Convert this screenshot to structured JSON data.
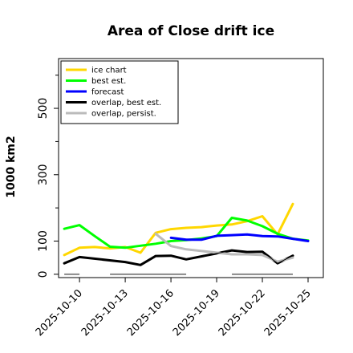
{
  "chart_data": {
    "type": "line",
    "title": "Area of Close drift ice",
    "ylabel": "1000 km2",
    "xlabel": "",
    "ylim": [
      -10,
      650
    ],
    "xlim": [
      "2025-10-08T15:00",
      "2025-10-26T00:00"
    ],
    "yticks": [
      0,
      100,
      300,
      500
    ],
    "xticks": [
      "2025-10-10",
      "2025-10-13",
      "2025-10-16",
      "2025-10-19",
      "2025-10-22",
      "2025-10-25"
    ],
    "highlight_xtick": "2025-10-16",
    "highlight_color": "#228B22",
    "grid": false,
    "legend_position": "top-left",
    "series": [
      {
        "name": "ice chart",
        "color": "#FFD700",
        "x": [
          "2025-10-09",
          "2025-10-10",
          "2025-10-11",
          "2025-10-12",
          "2025-10-13",
          "2025-10-14",
          "2025-10-15",
          "2025-10-16",
          "2025-10-17",
          "2025-10-18",
          "2025-10-19",
          "2025-10-20",
          "2025-10-21",
          "2025-10-22",
          "2025-10-23",
          "2025-10-24"
        ],
        "values": [
          58,
          80,
          82,
          78,
          82,
          65,
          125,
          136,
          140,
          142,
          147,
          150,
          160,
          175,
          120,
          212
        ]
      },
      {
        "name": "best est.",
        "color": "#00FF00",
        "x": [
          "2025-10-09",
          "2025-10-10",
          "2025-10-11",
          "2025-10-12",
          "2025-10-13",
          "2025-10-14",
          "2025-10-15",
          "2025-10-16",
          "2025-10-17",
          "2025-10-18",
          "2025-10-19",
          "2025-10-20",
          "2025-10-21",
          "2025-10-22",
          "2025-10-23",
          "2025-10-24",
          "2025-10-25"
        ],
        "values": [
          137,
          148,
          115,
          83,
          80,
          86,
          92,
          100,
          103,
          108,
          115,
          170,
          162,
          145,
          122,
          107,
          102
        ]
      },
      {
        "name": "forecast",
        "color": "#0000FF",
        "x": [
          "2025-10-16",
          "2025-10-17",
          "2025-10-18",
          "2025-10-19",
          "2025-10-20",
          "2025-10-21",
          "2025-10-22",
          "2025-10-23",
          "2025-10-24",
          "2025-10-25"
        ],
        "values": [
          110,
          104,
          104,
          116,
          118,
          120,
          115,
          114,
          107,
          100
        ]
      },
      {
        "name": "overlap, best est.",
        "color": "#000000",
        "x": [
          "2025-10-09",
          "2025-10-10",
          "2025-10-13",
          "2025-10-14",
          "2025-10-15",
          "2025-10-16",
          "2025-10-17",
          "2025-10-20",
          "2025-10-21",
          "2025-10-22",
          "2025-10-23",
          "2025-10-24"
        ],
        "values": [
          33,
          52,
          37,
          28,
          55,
          56,
          45,
          72,
          67,
          68,
          33,
          56
        ]
      },
      {
        "name": "overlap, persist.",
        "color": "#BBBBBB",
        "x": [
          "2025-10-15",
          "2025-10-16",
          "2025-10-17",
          "2025-10-20",
          "2025-10-21",
          "2025-10-22",
          "2025-10-23",
          "2025-10-24"
        ],
        "values": [
          122,
          85,
          75,
          60,
          60,
          58,
          38,
          50
        ]
      }
    ],
    "baseline_segments": [
      [
        "2025-10-09",
        "2025-10-10"
      ],
      [
        "2025-10-12",
        "2025-10-17"
      ],
      [
        "2025-10-20",
        "2025-10-24"
      ]
    ],
    "baseline_color": "#888888"
  }
}
